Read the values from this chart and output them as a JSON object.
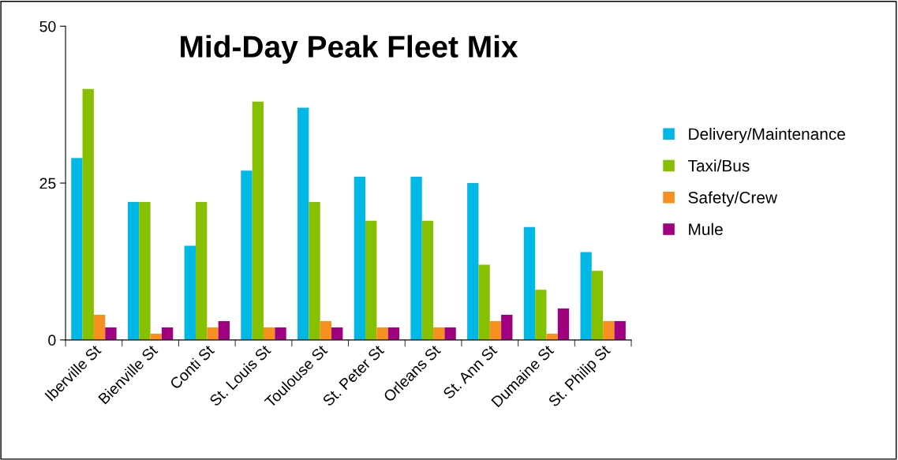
{
  "chart_data": {
    "type": "bar",
    "title": "Mid-Day Peak Fleet Mix",
    "categories": [
      "Iberville St",
      "Bienville St",
      "Conti St",
      "St. Louis St",
      "Toulouse St",
      "St. Peter St",
      "Orleans St",
      "St. Ann St",
      "Dumaine St",
      "St. Philip St"
    ],
    "series": [
      {
        "name": "Delivery/Maintenance",
        "color": "#00b8e6",
        "values": [
          29,
          22,
          15,
          27,
          37,
          26,
          26,
          25,
          18,
          14
        ]
      },
      {
        "name": "Taxi/Bus",
        "color": "#86c000",
        "values": [
          40,
          22,
          22,
          38,
          22,
          19,
          19,
          12,
          8,
          11
        ]
      },
      {
        "name": "Safety/Crew",
        "color": "#f79020",
        "values": [
          4,
          1,
          2,
          2,
          3,
          2,
          2,
          3,
          1,
          3
        ]
      },
      {
        "name": "Mule",
        "color": "#a0007f",
        "values": [
          2,
          2,
          3,
          2,
          2,
          2,
          2,
          4,
          5,
          3
        ]
      }
    ],
    "ylim": [
      0,
      50
    ],
    "yticks": [
      0,
      25,
      50
    ],
    "grid": false,
    "legend": "right"
  }
}
